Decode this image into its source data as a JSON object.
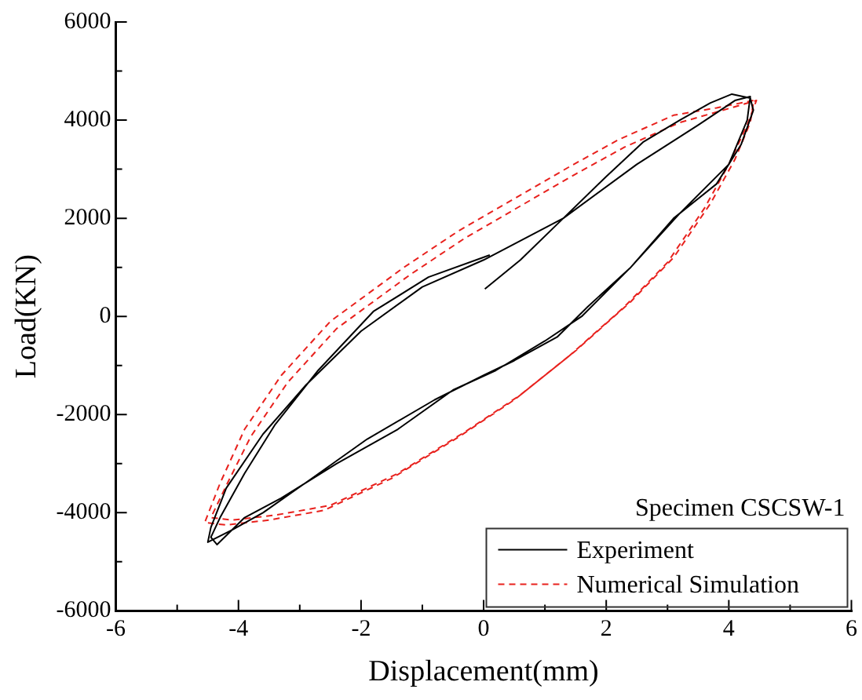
{
  "chart_data": {
    "type": "line",
    "xlabel": "Displacement(mm)",
    "ylabel": "Load(KN)",
    "xlim": [
      -6,
      6
    ],
    "ylim": [
      -6000,
      6000
    ],
    "xticks": [
      -6,
      {
        "value": -5,
        "label": null
      },
      -4,
      {
        "value": -3,
        "label": null
      },
      -2,
      {
        "value": -1,
        "label": null
      },
      0,
      {
        "value": 1,
        "label": null
      },
      2,
      {
        "value": 3,
        "label": null
      },
      4,
      {
        "value": 5,
        "label": null
      },
      6
    ],
    "yticks": [
      -6000,
      {
        "value": -5000,
        "label": null
      },
      -4000,
      {
        "value": -3000,
        "label": null
      },
      -2000,
      {
        "value": -1000,
        "label": null
      },
      0,
      {
        "value": 1000,
        "label": null
      },
      2000,
      {
        "value": 3000,
        "label": null
      },
      4000,
      {
        "value": 5000,
        "label": null
      },
      6000
    ],
    "grid": false,
    "legend": "bottom right",
    "marker": "none",
    "annotations": [
      "Specimen CSCSW-1"
    ],
    "series": [
      {
        "name": "Experiment",
        "color": "#000000",
        "line_style": "solid",
        "x": [
          0.02,
          0.6,
          1.3,
          2.0,
          2.6,
          3.2,
          3.7,
          4.05,
          4.35,
          4.4,
          4.2,
          3.8,
          3.1,
          2.4,
          1.7,
          1.2,
          0.5,
          0,
          -0.8,
          -1.9,
          -2.8,
          -3.6,
          -4.1,
          -4.5,
          -4.45,
          -4.2,
          -3.6,
          -2.9,
          -2.0,
          -1.0,
          0,
          1.3,
          2.5,
          3.5,
          4.1,
          4.35,
          4.3,
          4.0,
          3.2,
          2.4,
          1.6,
          1.0,
          0.2,
          -0.5,
          -1.4,
          -2.4,
          -3.3,
          -3.9,
          -4.35,
          -4.45,
          -4.3,
          -3.9,
          -3.4,
          -2.7,
          -1.8,
          -0.9,
          0.1
        ],
        "values": [
          560,
          1150,
          2000,
          2850,
          3550,
          4000,
          4350,
          4530,
          4450,
          4200,
          3500,
          2700,
          2000,
          1000,
          200,
          -420,
          -900,
          -1200,
          -1700,
          -2500,
          -3300,
          -4000,
          -4350,
          -4600,
          -4300,
          -3500,
          -2400,
          -1400,
          -300,
          600,
          1150,
          2000,
          3100,
          3900,
          4400,
          4480,
          4000,
          3100,
          2100,
          1000,
          0,
          -500,
          -1100,
          -1500,
          -2300,
          -3000,
          -3700,
          -4100,
          -4650,
          -4500,
          -4100,
          -3200,
          -2200,
          -1100,
          100,
          800,
          1250
        ]
      },
      {
        "name": "Numerical Simulation",
        "color": "#e8211d",
        "line_style": "dashed",
        "x": [
          4.4,
          3.8,
          3.1,
          2.2,
          1.4,
          0.5,
          -0.4,
          -1.3,
          -2.5,
          -3.3,
          -3.9,
          -4.3,
          -4.55,
          -4.2,
          -3.5,
          -2.6,
          -1.5,
          -0.4,
          0.5,
          1.4,
          2.3,
          3.0,
          3.6,
          4.0,
          4.3,
          4.45,
          3.9,
          3.2,
          2.3,
          1.5,
          0.6,
          -0.3,
          -1.2,
          -2.4,
          -3.2,
          -3.8,
          -4.2,
          -4.45,
          -4.1,
          -3.4,
          -2.5,
          -1.4,
          -0.3,
          0.6,
          1.5,
          2.4,
          3.1,
          3.7,
          4.1,
          4.35,
          4.4
        ],
        "values": [
          4400,
          4250,
          4100,
          3600,
          3050,
          2400,
          1750,
          1000,
          -100,
          -1200,
          -2300,
          -3400,
          -4200,
          -4250,
          -4150,
          -3950,
          -3300,
          -2450,
          -1700,
          -800,
          200,
          1100,
          2200,
          3100,
          3900,
          4400,
          4200,
          3950,
          3450,
          2900,
          2250,
          1600,
          850,
          -250,
          -1350,
          -2450,
          -3450,
          -4100,
          -4150,
          -4050,
          -3850,
          -3200,
          -2350,
          -1600,
          -700,
          300,
          1200,
          2300,
          3200,
          3950,
          4350
        ]
      }
    ]
  }
}
